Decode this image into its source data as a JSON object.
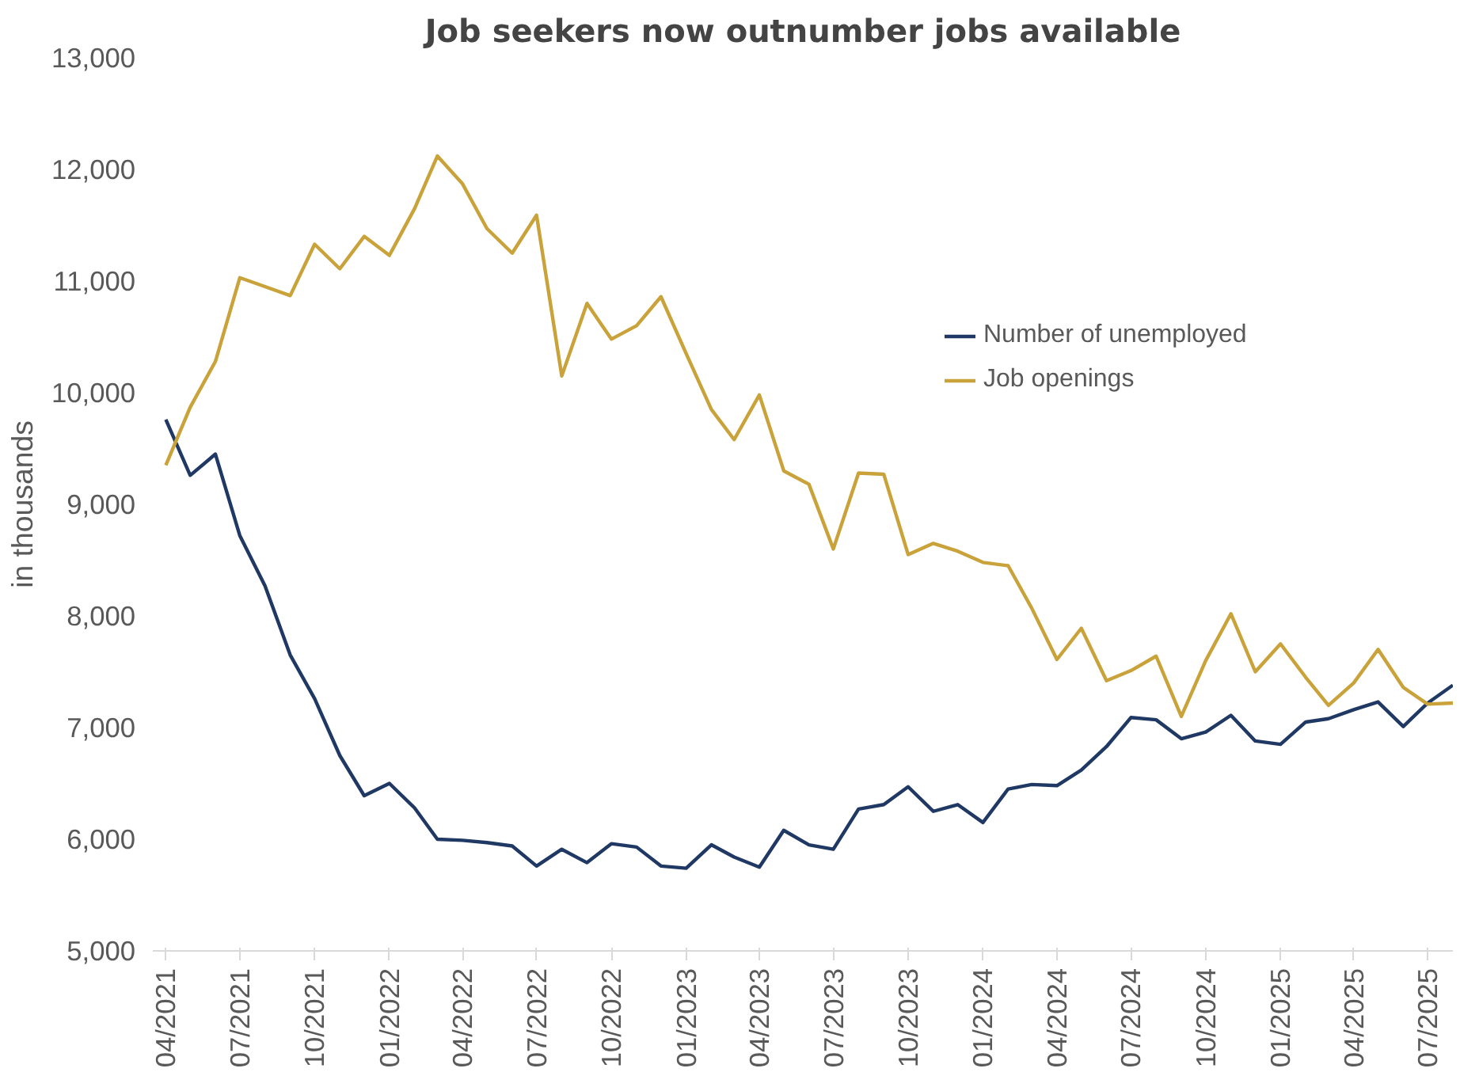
{
  "chart_data": {
    "type": "line",
    "title": "Job seekers now outnumber jobs available",
    "ylabel": "in thousands",
    "x": [
      "2021-04",
      "2021-05",
      "2021-06",
      "2021-07",
      "2021-08",
      "2021-09",
      "2021-10",
      "2021-11",
      "2021-12",
      "2022-01",
      "2022-02",
      "2022-03",
      "2022-04",
      "2022-05",
      "2022-06",
      "2022-07",
      "2022-08",
      "2022-09",
      "2022-10",
      "2022-11",
      "2022-12",
      "2023-01",
      "2023-02",
      "2023-03",
      "2023-04",
      "2023-05",
      "2023-06",
      "2023-07",
      "2023-08",
      "2023-09",
      "2023-10",
      "2023-11",
      "2023-12",
      "2024-01",
      "2024-02",
      "2024-03",
      "2024-04",
      "2024-05",
      "2024-06",
      "2024-07",
      "2024-08",
      "2024-09",
      "2024-10",
      "2024-11",
      "2024-12",
      "2025-01",
      "2025-02",
      "2025-03",
      "2025-04",
      "2025-05",
      "2025-06",
      "2025-07",
      "2025-08"
    ],
    "series": [
      {
        "name": "Number of unemployed",
        "color": "#1f3864",
        "values": [
          9760,
          9260,
          9450,
          8720,
          8270,
          7650,
          7260,
          6750,
          6390,
          6500,
          6280,
          6000,
          5990,
          5970,
          5940,
          5760,
          5910,
          5790,
          5960,
          5930,
          5760,
          5740,
          5950,
          5840,
          5750,
          6080,
          5950,
          5910,
          6270,
          6310,
          6470,
          6250,
          6310,
          6150,
          6450,
          6490,
          6480,
          6620,
          6830,
          7090,
          7070,
          6900,
          6960,
          7110,
          6880,
          6850,
          7050,
          7080,
          7160,
          7230,
          7010,
          7220,
          7380
        ]
      },
      {
        "name": "Job openings",
        "color": "#c9a23a",
        "values": [
          9350,
          9870,
          10280,
          11030,
          10950,
          10870,
          11330,
          11110,
          11400,
          11230,
          11650,
          12120,
          11870,
          11470,
          11250,
          11590,
          10150,
          10800,
          10480,
          10600,
          10860,
          10350,
          9850,
          9580,
          9980,
          9300,
          9180,
          8600,
          9280,
          9270,
          8550,
          8650,
          8580,
          8480,
          8450,
          8070,
          7610,
          7890,
          7420,
          7510,
          7640,
          7100,
          7600,
          8020,
          7500,
          7750,
          7450,
          7200,
          7400,
          7700,
          7360,
          7210,
          7220
        ]
      }
    ],
    "xlim": [
      "2021-03-16",
      "2025-08-01"
    ],
    "xticks": [
      {
        "value": "2021-04",
        "label": "04/2021"
      },
      {
        "value": "2021-07",
        "label": "07/2021"
      },
      {
        "value": "2021-10",
        "label": "10/2021"
      },
      {
        "value": "2022-01",
        "label": "01/2022"
      },
      {
        "value": "2022-04",
        "label": "04/2022"
      },
      {
        "value": "2022-07",
        "label": "07/2022"
      },
      {
        "value": "2022-10",
        "label": "10/2022"
      },
      {
        "value": "2023-01",
        "label": "01/2023"
      },
      {
        "value": "2023-04",
        "label": "04/2023"
      },
      {
        "value": "2023-07",
        "label": "07/2023"
      },
      {
        "value": "2023-10",
        "label": "10/2023"
      },
      {
        "value": "2024-01",
        "label": "01/2024"
      },
      {
        "value": "2024-04",
        "label": "04/2024"
      },
      {
        "value": "2024-07",
        "label": "07/2024"
      },
      {
        "value": "2024-10",
        "label": "10/2024"
      },
      {
        "value": "2025-01",
        "label": "01/2025"
      },
      {
        "value": "2025-04",
        "label": "04/2025"
      },
      {
        "value": "2025-07",
        "label": "07/2025"
      }
    ],
    "ylim": [
      5000,
      13000
    ],
    "yticks": [
      {
        "value": 5000,
        "label": "5,000"
      },
      {
        "value": 6000,
        "label": "6,000"
      },
      {
        "value": 7000,
        "label": "7,000"
      },
      {
        "value": 8000,
        "label": "8,000"
      },
      {
        "value": 9000,
        "label": "9,000"
      },
      {
        "value": 10000,
        "label": "10,000"
      },
      {
        "value": 11000,
        "label": "11,000"
      },
      {
        "value": 12000,
        "label": "12,000"
      },
      {
        "value": 13000,
        "label": "13,000"
      }
    ],
    "grid": false,
    "legend": "right",
    "line_style": "solid",
    "marker": "none"
  }
}
